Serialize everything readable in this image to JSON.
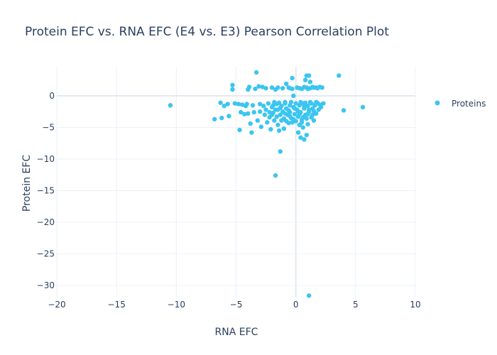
{
  "chart_data": {
    "type": "scatter",
    "title": "Protein EFC vs. RNA EFC (E4 vs. E3) Pearson Correlation Plot",
    "xlabel": "RNA EFC",
    "ylabel": "Protein EFC",
    "xlim": [
      -20,
      10
    ],
    "ylim": [
      -31.9,
      4.6
    ],
    "xticks": [
      -20,
      -15,
      -10,
      -5,
      0,
      5,
      10
    ],
    "yticks": [
      0,
      -5,
      -10,
      -15,
      -20,
      -25,
      -30
    ],
    "grid": true,
    "legend": {
      "position": "right",
      "entries": [
        "Proteins"
      ]
    },
    "marker_color": "#3cc5f0",
    "series": [
      {
        "name": "Proteins",
        "points": [
          [
            -10.5,
            -1.5
          ],
          [
            -6.8,
            -3.7
          ],
          [
            -6.2,
            -3.5
          ],
          [
            -6.3,
            -1.1
          ],
          [
            -6.0,
            -1.6
          ],
          [
            -5.7,
            -1.3
          ],
          [
            -5.6,
            -3.2
          ],
          [
            -5.3,
            1.7
          ],
          [
            -5.3,
            1.0
          ],
          [
            -5.1,
            -1.2
          ],
          [
            -4.8,
            -1.3
          ],
          [
            -4.7,
            -5.4
          ],
          [
            -4.6,
            -2.6
          ],
          [
            -4.5,
            -1.4
          ],
          [
            -4.3,
            -2.9
          ],
          [
            -4.2,
            -1.6
          ],
          [
            -4.1,
            -1.3
          ],
          [
            -4.0,
            -2.8
          ],
          [
            -4.0,
            1.0
          ],
          [
            -3.9,
            1.4
          ],
          [
            -3.8,
            -4.4
          ],
          [
            -3.7,
            -5.8
          ],
          [
            -3.6,
            -1.5
          ],
          [
            -3.5,
            -2.6
          ],
          [
            -3.4,
            1.1
          ],
          [
            -3.3,
            3.7
          ],
          [
            -3.2,
            -3.9
          ],
          [
            -3.1,
            1.5
          ],
          [
            -3.0,
            -1.3
          ],
          [
            -3.0,
            -2.5
          ],
          [
            -2.9,
            -4.9
          ],
          [
            -2.8,
            1.4
          ],
          [
            -2.7,
            -1.6
          ],
          [
            -2.6,
            -3.0
          ],
          [
            -2.5,
            -2.2
          ],
          [
            -2.4,
            -4.2
          ],
          [
            -2.3,
            -1.2
          ],
          [
            -2.2,
            -3.4
          ],
          [
            -2.1,
            -5.3
          ],
          [
            -2.0,
            1.3
          ],
          [
            -2.0,
            -1.8
          ],
          [
            -1.9,
            -2.7
          ],
          [
            -1.8,
            -3.9
          ],
          [
            -1.7,
            -12.6
          ],
          [
            -1.7,
            1.0
          ],
          [
            -1.6,
            -1.3
          ],
          [
            -1.5,
            -2.2
          ],
          [
            -1.5,
            -4.6
          ],
          [
            -1.4,
            -5.5
          ],
          [
            -1.3,
            -8.8
          ],
          [
            -1.3,
            -3.0
          ],
          [
            -1.2,
            -1.6
          ],
          [
            -1.1,
            1.2
          ],
          [
            -1.1,
            -2.5
          ],
          [
            -1.0,
            -3.6
          ],
          [
            -1.0,
            -5.2
          ],
          [
            -0.9,
            -1.2
          ],
          [
            -0.8,
            -2.0
          ],
          [
            -0.8,
            1.9
          ],
          [
            -0.7,
            -3.0
          ],
          [
            -0.6,
            -4.3
          ],
          [
            -0.6,
            1.3
          ],
          [
            -0.5,
            -1.5
          ],
          [
            -0.5,
            -2.6
          ],
          [
            -0.4,
            -3.5
          ],
          [
            -0.3,
            2.8
          ],
          [
            -0.3,
            1.1
          ],
          [
            -0.2,
            -1.8
          ],
          [
            -0.2,
            0.0
          ],
          [
            -0.1,
            -2.9
          ],
          [
            0.0,
            -4.0
          ],
          [
            0.0,
            -1.2
          ],
          [
            0.1,
            1.3
          ],
          [
            0.1,
            -2.2
          ],
          [
            0.2,
            -3.3
          ],
          [
            0.2,
            -5.8
          ],
          [
            0.3,
            -4.6
          ],
          [
            0.3,
            -1.5
          ],
          [
            0.4,
            -6.6
          ],
          [
            0.4,
            -2.6
          ],
          [
            0.5,
            1.1
          ],
          [
            0.5,
            -3.8
          ],
          [
            0.6,
            -1.2
          ],
          [
            0.6,
            -5.0
          ],
          [
            0.7,
            -2.0
          ],
          [
            0.7,
            -6.9
          ],
          [
            0.8,
            2.5
          ],
          [
            0.8,
            -3.0
          ],
          [
            0.9,
            3.2
          ],
          [
            0.9,
            -6.2
          ],
          [
            0.9,
            1.3
          ],
          [
            1.0,
            -1.6
          ],
          [
            1.0,
            -4.5
          ],
          [
            1.1,
            -31.6
          ],
          [
            1.1,
            3.2
          ],
          [
            1.1,
            -2.5
          ],
          [
            1.2,
            2.2
          ],
          [
            1.2,
            1.2
          ],
          [
            1.3,
            -3.4
          ],
          [
            1.3,
            -1.2
          ],
          [
            1.4,
            -2.0
          ],
          [
            1.5,
            1.3
          ],
          [
            1.5,
            -3.9
          ],
          [
            1.6,
            -1.5
          ],
          [
            1.7,
            -2.8
          ],
          [
            1.8,
            1.2
          ],
          [
            1.8,
            -1.1
          ],
          [
            1.9,
            -2.2
          ],
          [
            2.0,
            1.4
          ],
          [
            2.0,
            -1.4
          ],
          [
            2.1,
            -1.8
          ],
          [
            2.2,
            1.3
          ],
          [
            2.3,
            -1.2
          ],
          [
            3.6,
            3.2
          ],
          [
            4.0,
            -2.3
          ],
          [
            5.6,
            -1.8
          ],
          [
            -1.8,
            -1.0
          ],
          [
            -1.4,
            -1.1
          ],
          [
            -0.9,
            -1.0
          ],
          [
            -0.4,
            -1.0
          ],
          [
            0.4,
            -1.0
          ],
          [
            0.8,
            -1.1
          ],
          [
            1.2,
            -1.0
          ],
          [
            1.7,
            -1.0
          ],
          [
            -2.0,
            -3.0
          ],
          [
            -1.6,
            -3.3
          ],
          [
            -1.2,
            -3.9
          ],
          [
            -0.8,
            -4.0
          ],
          [
            -0.3,
            -4.2
          ],
          [
            0.5,
            -4.2
          ],
          [
            0.9,
            -3.6
          ],
          [
            1.4,
            -3.0
          ],
          [
            -1.7,
            -2.2
          ],
          [
            -1.3,
            -1.9
          ],
          [
            -0.9,
            -2.8
          ],
          [
            -0.5,
            -3.2
          ],
          [
            -0.1,
            -2.0
          ],
          [
            0.3,
            -2.9
          ],
          [
            0.7,
            -1.7
          ],
          [
            1.1,
            -2.2
          ],
          [
            -2.2,
            -2.6
          ],
          [
            -1.9,
            -1.5
          ],
          [
            -0.6,
            -2.3
          ],
          [
            -0.2,
            -3.7
          ],
          [
            0.2,
            -2.5
          ],
          [
            0.6,
            -3.4
          ],
          [
            1.0,
            -2.9
          ],
          [
            1.5,
            -2.4
          ],
          [
            -2.5,
            1.2
          ],
          [
            -1.5,
            1.3
          ],
          [
            -0.5,
            1.2
          ],
          [
            0.3,
            1.2
          ],
          [
            0.7,
            1.4
          ],
          [
            1.0,
            1.1
          ],
          [
            1.4,
            1.4
          ],
          [
            1.7,
            1.3
          ]
        ]
      }
    ]
  }
}
